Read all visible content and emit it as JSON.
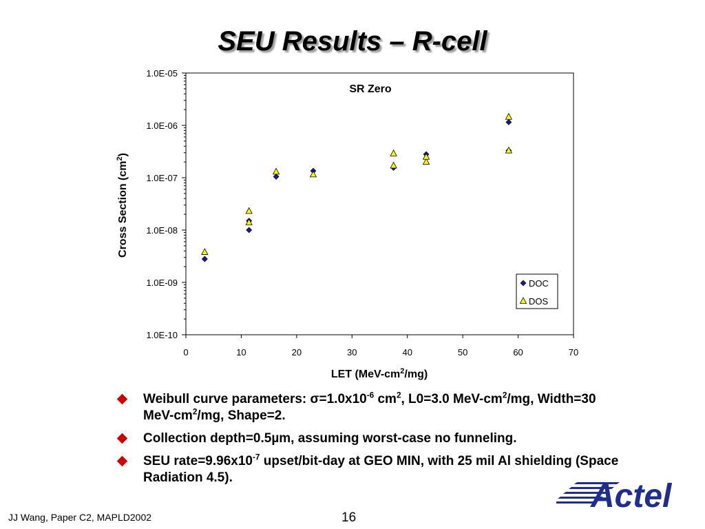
{
  "slide": {
    "title": "SEU Results – R-cell",
    "footer_left": "JJ Wang, Paper C2,  MAPLD2002",
    "page_number": "16",
    "logo_text": "Actel"
  },
  "bullets": [
    {
      "parts": [
        "Weibull curve parameters: σ=1.0x10",
        "-6",
        " cm",
        "2",
        ", L0=3.0 MeV-cm",
        "2",
        "/mg, Width=30 MeV-cm",
        "2",
        "/mg, Shape=2."
      ]
    },
    {
      "text": "Collection depth=0.5µm, assuming worst-case no funneling."
    },
    {
      "parts": [
        "SEU rate=9.96x10",
        "-7",
        " upset/bit-day at GEO MIN, with 25 mil Al shielding (Space Radiation 4.5)."
      ]
    }
  ],
  "chart_data": {
    "type": "scatter",
    "title": "SR Zero",
    "xlabel_parts": [
      "LET (MeV-cm",
      "2",
      "/mg)"
    ],
    "ylabel_parts": [
      "Cross Section (cm",
      "2",
      ")"
    ],
    "xlim": [
      0,
      70
    ],
    "x_ticks": [
      "0",
      "10",
      "20",
      "30",
      "40",
      "50",
      "60",
      "70"
    ],
    "y_scale": "log",
    "ylim": [
      1e-10,
      1e-05
    ],
    "y_ticks": [
      "1.0E-10",
      "1.0E-09",
      "1.0E-08",
      "1.0E-07",
      "1.0E-06",
      "1.0E-05"
    ],
    "grid": false,
    "legend_position": "bottom-right",
    "series": [
      {
        "name": "DOC",
        "marker": "diamond",
        "color": "#1a1a8c",
        "points": [
          [
            3.4,
            2.8e-09
          ],
          [
            11.4,
            1e-08
          ],
          [
            11.4,
            1.5e-08
          ],
          [
            16.3,
            1.05e-07
          ],
          [
            23.0,
            1.35e-07
          ],
          [
            37.5,
            1.55e-07
          ],
          [
            43.4,
            2.8e-07
          ],
          [
            58.3,
            1.15e-06
          ],
          [
            58.3,
            3.3e-07
          ]
        ]
      },
      {
        "name": "DOS",
        "marker": "triangle",
        "color": "#ffff00",
        "points": [
          [
            3.4,
            3.8e-09
          ],
          [
            11.4,
            1.4e-08
          ],
          [
            11.4,
            2.3e-08
          ],
          [
            16.3,
            1.3e-07
          ],
          [
            23.0,
            1.15e-07
          ],
          [
            37.5,
            1.7e-07
          ],
          [
            37.5,
            2.9e-07
          ],
          [
            43.4,
            2e-07
          ],
          [
            43.4,
            2.5e-07
          ],
          [
            58.3,
            1.45e-06
          ],
          [
            58.3,
            3.3e-07
          ]
        ]
      }
    ]
  }
}
